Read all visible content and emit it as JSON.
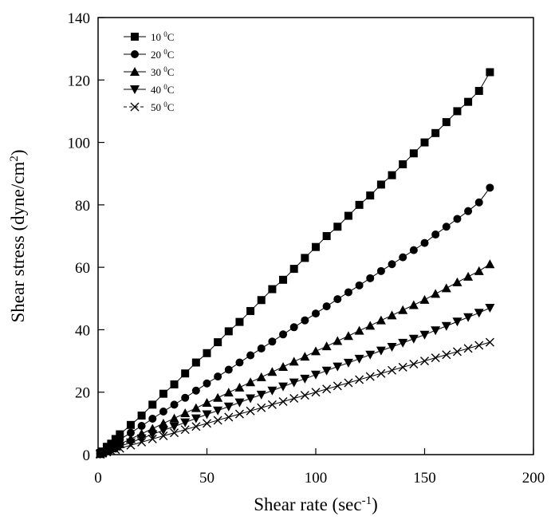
{
  "chart_data": {
    "type": "line",
    "title": "",
    "xlabel": "Shear rate (sec",
    "xlabel_sup": "-1",
    "xlabel_end": ")",
    "ylabel": "Shear stress (dyne/cm",
    "ylabel_sup": "2",
    "ylabel_end": ")",
    "xlim": [
      0,
      200
    ],
    "ylim": [
      0,
      140
    ],
    "xticks": [
      0,
      50,
      100,
      150,
      200
    ],
    "yticks": [
      0,
      20,
      40,
      60,
      80,
      100,
      120,
      140
    ],
    "grid": false,
    "legend_position": "top-left",
    "series": [
      {
        "name": "10 °C",
        "label_num": "10 ",
        "label_sup": "0",
        "label_unit": "C",
        "marker": "square",
        "x": [
          1,
          2,
          4,
          6,
          8,
          10,
          15,
          20,
          25,
          30,
          35,
          40,
          45,
          50,
          55,
          60,
          65,
          70,
          75,
          80,
          85,
          90,
          95,
          100,
          105,
          110,
          115,
          120,
          125,
          130,
          135,
          140,
          145,
          150,
          155,
          160,
          165,
          170,
          175,
          180
        ],
        "y": [
          0.5,
          1,
          2.5,
          3.5,
          5,
          6.5,
          9.5,
          12.5,
          16,
          19.5,
          22.5,
          26,
          29.5,
          32.5,
          36,
          39.5,
          42.5,
          46,
          49.5,
          53,
          56,
          59.5,
          63,
          66.5,
          70,
          73,
          76.5,
          80,
          83,
          86.5,
          89.5,
          93,
          96.5,
          100,
          103,
          106.5,
          110,
          113,
          116.5,
          122.5
        ]
      },
      {
        "name": "20 °C",
        "label_num": "20 ",
        "label_sup": "0",
        "label_unit": "C",
        "marker": "circle",
        "x": [
          1,
          2,
          4,
          6,
          8,
          10,
          15,
          20,
          25,
          30,
          35,
          40,
          45,
          50,
          55,
          60,
          65,
          70,
          75,
          80,
          85,
          90,
          95,
          100,
          105,
          110,
          115,
          120,
          125,
          130,
          135,
          140,
          145,
          150,
          155,
          160,
          165,
          170,
          175,
          180
        ],
        "y": [
          0.3,
          0.8,
          1.8,
          2.8,
          3.8,
          4.8,
          7,
          9.2,
          11.5,
          13.8,
          16,
          18.2,
          20.5,
          22.8,
          25,
          27.2,
          29.5,
          31.8,
          34,
          36.2,
          38.5,
          40.8,
          43,
          45.2,
          47.5,
          49.8,
          52,
          54.2,
          56.5,
          58.8,
          61,
          63.2,
          65.5,
          67.8,
          70.5,
          73,
          75.5,
          78,
          80.8,
          85.5
        ]
      },
      {
        "name": "30 °C",
        "label_num": "30 ",
        "label_sup": "0",
        "label_unit": "C",
        "marker": "triangle-up",
        "x": [
          1,
          2,
          4,
          6,
          8,
          10,
          15,
          20,
          25,
          30,
          35,
          40,
          45,
          50,
          55,
          60,
          65,
          70,
          75,
          80,
          85,
          90,
          95,
          100,
          105,
          110,
          115,
          120,
          125,
          130,
          135,
          140,
          145,
          150,
          155,
          160,
          165,
          170,
          175,
          180
        ],
        "y": [
          0.2,
          0.6,
          1.3,
          2,
          2.7,
          3.4,
          5,
          6.7,
          8.3,
          10,
          11.6,
          13.3,
          14.9,
          16.6,
          18.2,
          19.9,
          21.5,
          23.2,
          24.8,
          26.5,
          28.1,
          29.8,
          31.4,
          33.1,
          34.7,
          36.4,
          38,
          39.7,
          41.3,
          43,
          44.6,
          46.3,
          47.9,
          49.6,
          51.5,
          53.3,
          55.2,
          57,
          58.8,
          61
        ]
      },
      {
        "name": "40 °C",
        "label_num": "40 ",
        "label_sup": "0",
        "label_unit": "C",
        "marker": "triangle-down",
        "x": [
          1,
          2,
          4,
          6,
          8,
          10,
          15,
          20,
          25,
          30,
          35,
          40,
          45,
          50,
          55,
          60,
          65,
          70,
          75,
          80,
          85,
          90,
          95,
          100,
          105,
          110,
          115,
          120,
          125,
          130,
          135,
          140,
          145,
          150,
          155,
          160,
          165,
          170,
          175,
          180
        ],
        "y": [
          0.2,
          0.5,
          1,
          1.6,
          2.1,
          2.6,
          3.9,
          5.2,
          6.5,
          7.8,
          9,
          10.3,
          11.6,
          12.9,
          14.1,
          15.4,
          16.7,
          18,
          19.2,
          20.5,
          21.8,
          23.1,
          24.3,
          25.6,
          26.9,
          28.2,
          29.4,
          30.7,
          32,
          33.3,
          34.5,
          35.8,
          37.1,
          38.4,
          39.8,
          41.2,
          42.6,
          44,
          45.4,
          47
        ]
      },
      {
        "name": "50 °C",
        "label_num": "50 ",
        "label_sup": "0",
        "label_unit": "C",
        "marker": "x",
        "x": [
          1,
          2,
          4,
          6,
          8,
          10,
          15,
          20,
          25,
          30,
          35,
          40,
          45,
          50,
          55,
          60,
          65,
          70,
          75,
          80,
          85,
          90,
          95,
          100,
          105,
          110,
          115,
          120,
          125,
          130,
          135,
          140,
          145,
          150,
          155,
          160,
          165,
          170,
          175,
          180
        ],
        "y": [
          0.1,
          0.4,
          0.8,
          1.2,
          1.6,
          2,
          3,
          4,
          5,
          6,
          7,
          8,
          9,
          10,
          11,
          12,
          13,
          14,
          15,
          16,
          17,
          18,
          19,
          20,
          21,
          22,
          23,
          24,
          25,
          26,
          27,
          28,
          29,
          30,
          31,
          32,
          33,
          34,
          35,
          36
        ]
      }
    ]
  }
}
